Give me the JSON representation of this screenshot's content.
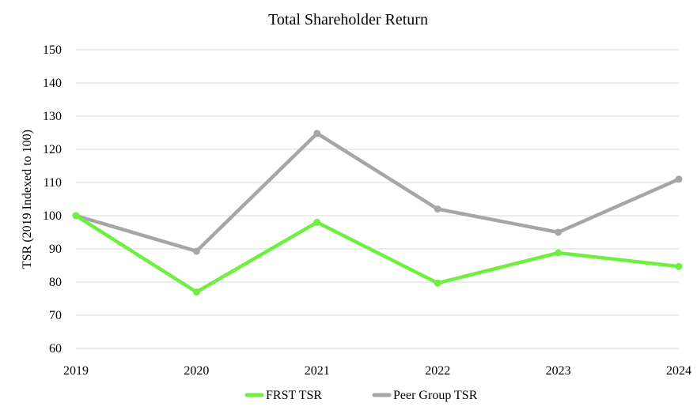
{
  "chart_data": {
    "type": "line",
    "title": "Total Shareholder Return",
    "xlabel": "",
    "ylabel": "TSR (2019 Indexed to 100)",
    "categories": [
      "2019",
      "2020",
      "2021",
      "2022",
      "2023",
      "2024"
    ],
    "ylim": [
      60,
      150
    ],
    "yticks": [
      "60",
      "70",
      "80",
      "90",
      "100",
      "110",
      "120",
      "130",
      "140",
      "150"
    ],
    "grid": true,
    "legend_position": "bottom",
    "series": [
      {
        "name": "FRST TSR",
        "color": "#6ff040",
        "values": [
          100,
          77,
          98,
          79.7,
          88.8,
          84.7
        ]
      },
      {
        "name": "Peer Group TSR",
        "color": "#a6a6a6",
        "values": [
          100,
          89.3,
          124.8,
          102,
          95,
          111
        ]
      }
    ]
  }
}
